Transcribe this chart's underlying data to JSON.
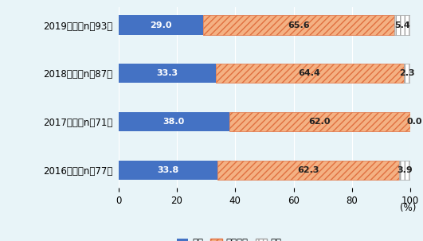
{
  "categories": [
    "2019年度（n＝93）",
    "2018年度（n＝87）",
    "2017年度（n＝71）",
    "2016年度（n＝77）"
  ],
  "拡大": [
    29.0,
    33.3,
    38.0,
    33.8
  ],
  "現状維持": [
    65.6,
    64.4,
    62.0,
    62.3
  ],
  "縮小": [
    5.4,
    2.3,
    0.0,
    3.9
  ],
  "color_kakudai": "#4472C4",
  "color_genjo_face": "#F4B183",
  "color_genjo_edge": "#E07040",
  "color_shukusho_edge": "#A0A0A0",
  "background_color": "#E8F4F8",
  "xlim": [
    0,
    100
  ],
  "xlabel": "(%)",
  "xticks": [
    0,
    20,
    40,
    60,
    80,
    100
  ],
  "bar_height": 0.4,
  "label_fontsize": 8.0,
  "tick_fontsize": 8.5,
  "legend_fontsize": 8.5
}
